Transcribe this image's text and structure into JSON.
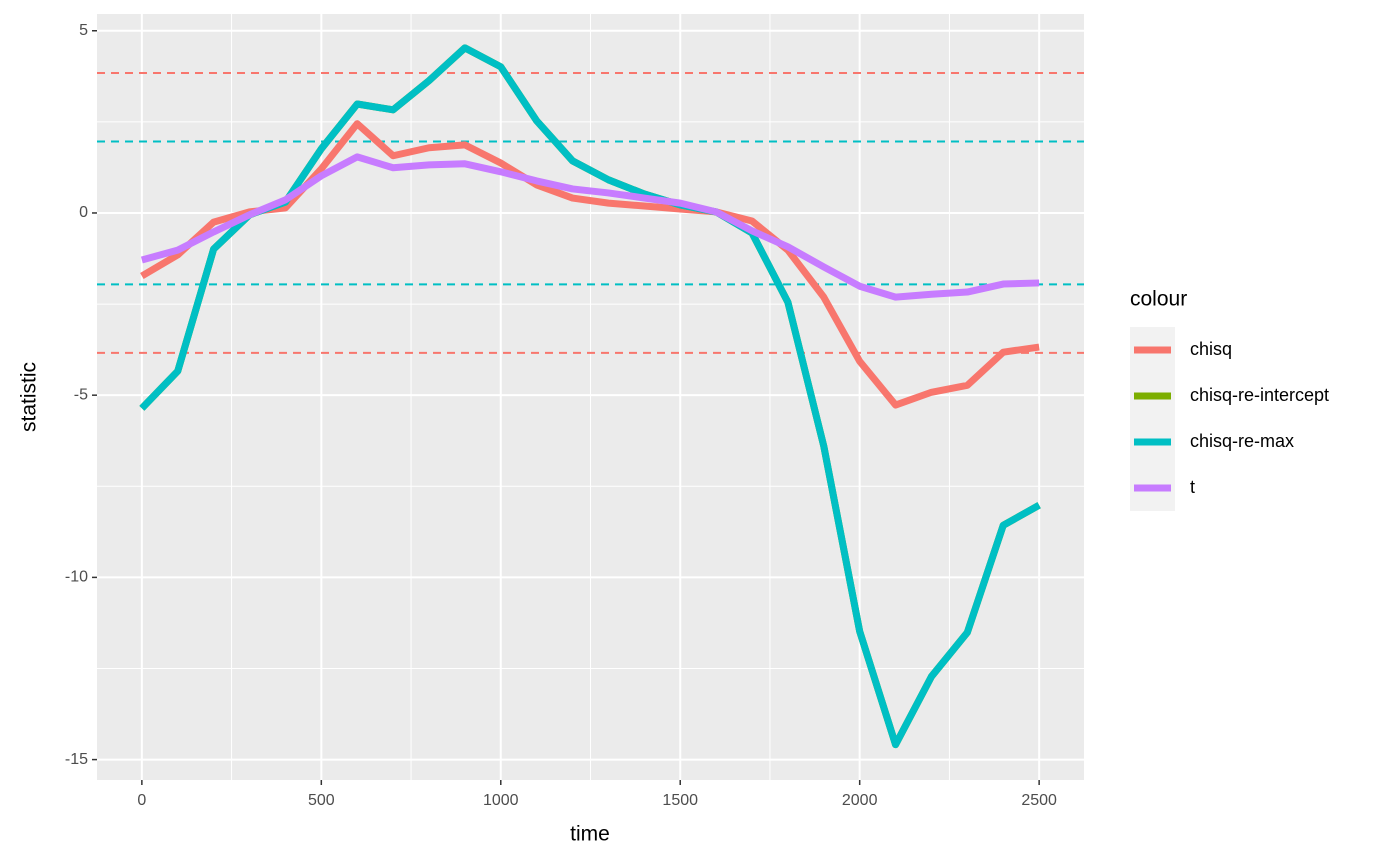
{
  "chart_data": {
    "type": "line",
    "x_label": "time",
    "y_label": "statistic",
    "legend_title": "colour",
    "legend_position": "right",
    "x": [
      0,
      100,
      200,
      300,
      400,
      500,
      600,
      700,
      800,
      900,
      1000,
      1100,
      1200,
      1300,
      1400,
      1500,
      1600,
      1700,
      1800,
      1900,
      2000,
      2100,
      2200,
      2300,
      2400,
      2500
    ],
    "series": [
      {
        "name": "chisq",
        "color": "#F8766D",
        "values": [
          -1.73,
          -1.15,
          -0.25,
          0.03,
          0.14,
          1.21,
          2.45,
          1.57,
          1.79,
          1.87,
          1.37,
          0.77,
          0.41,
          0.27,
          0.19,
          0.11,
          0.03,
          -0.22,
          -1.02,
          -2.31,
          -4.07,
          -5.27,
          -4.92,
          -4.73,
          -3.82,
          -3.68
        ]
      },
      {
        "name": "chisq-re-intercept",
        "color": "#7CAE00",
        "values": [
          -5.36,
          -4.34,
          -0.99,
          -0.05,
          0.3,
          1.76,
          2.99,
          2.83,
          3.63,
          4.53,
          4.01,
          2.53,
          1.43,
          0.91,
          0.52,
          0.22,
          0.03,
          -0.55,
          -2.45,
          -6.4,
          -11.48,
          -14.59,
          -12.72,
          -11.51,
          -8.57,
          -8.02
        ]
      },
      {
        "name": "chisq-re-max",
        "color": "#00BFC4",
        "values": [
          -5.36,
          -4.34,
          -0.99,
          -0.05,
          0.3,
          1.76,
          2.99,
          2.83,
          3.63,
          4.53,
          4.01,
          2.53,
          1.43,
          0.91,
          0.52,
          0.22,
          0.03,
          -0.55,
          -2.45,
          -6.4,
          -11.48,
          -14.59,
          -12.72,
          -11.51,
          -8.57,
          -8.02
        ]
      },
      {
        "name": "t",
        "color": "#C77CFF",
        "values": [
          -1.29,
          -1.02,
          -0.52,
          -0.05,
          0.36,
          1.02,
          1.54,
          1.24,
          1.32,
          1.35,
          1.13,
          0.88,
          0.66,
          0.55,
          0.41,
          0.27,
          0.03,
          -0.49,
          -0.93,
          -1.48,
          -2.01,
          -2.31,
          -2.23,
          -2.17,
          -1.95,
          -1.92
        ]
      }
    ],
    "reference_lines": [
      {
        "value": 3.84,
        "color": "#F8766D"
      },
      {
        "value": -3.84,
        "color": "#F8766D"
      },
      {
        "value": 1.96,
        "color": "#00BFC4"
      },
      {
        "value": -1.96,
        "color": "#00BFC4"
      }
    ],
    "xlim": [
      -125,
      2625
    ],
    "ylim": [
      -15.56,
      5.46
    ],
    "xticks": [
      0,
      500,
      1000,
      1500,
      2000,
      2500
    ],
    "yticks": [
      -15,
      -10,
      -5,
      0,
      5
    ],
    "x_minor_breaks": [
      250,
      750,
      1250,
      1750,
      2250
    ],
    "y_minor_breaks": [
      -12.5,
      -7.5,
      -2.5,
      2.5
    ],
    "grid": true
  }
}
